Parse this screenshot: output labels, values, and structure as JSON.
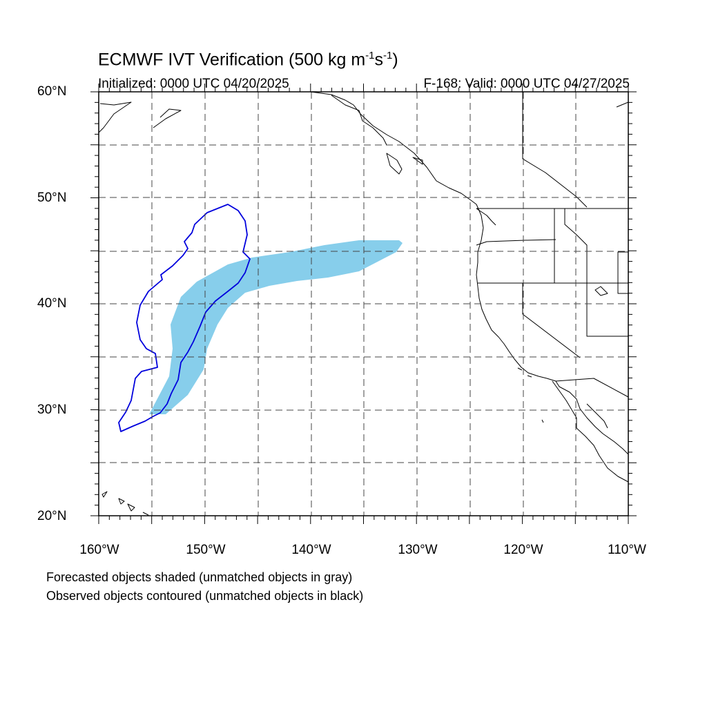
{
  "title": {
    "prefix": "ECMWF IVT Verification (500 kg m",
    "exp1": "-1",
    "mid": "s",
    "exp2": "-1",
    "suffix": ")"
  },
  "initialized": "Initialized: 0000 UTC 04/20/2025",
  "valid": "F-168: Valid: 0000 UTC 04/27/2025",
  "lat_labels": [
    "60°N",
    "50°N",
    "40°N",
    "30°N",
    "20°N"
  ],
  "lon_labels": [
    "160°W",
    "150°W",
    "140°W",
    "130°W",
    "120°W",
    "110°W"
  ],
  "legend_notes": [
    "Forecasted objects shaded (unmatched objects in gray)",
    "Observed objects contoured (unmatched objects in black)"
  ],
  "map": {
    "lat_range": [
      20,
      60
    ],
    "lon_range": [
      -160,
      -110
    ],
    "grid_step_deg": 5,
    "forecast_object_color": "#87ceeb",
    "observed_object_color": "#0000dd",
    "coastline_color": "#000000"
  }
}
